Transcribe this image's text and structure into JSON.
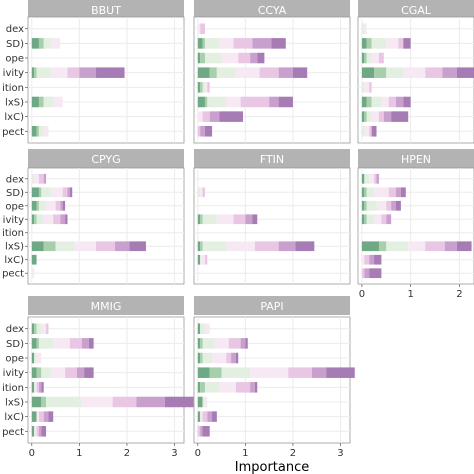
{
  "chart_data": {
    "type": "bar",
    "xlabel": "Importance",
    "ylabel": "",
    "grid": true,
    "row_tick_labels": [
      "dex",
      "SD)",
      "ope",
      "ivity",
      "ition",
      "lxS)",
      "lxC)",
      "pect"
    ],
    "panel_tick_labels": [
      "Index",
      "(SD)",
      "Slope",
      "Conductivity",
      "Precipitation",
      "(TxS)",
      "(TxC)",
      "Aspect"
    ],
    "segment_colors": [
      "#6fa884",
      "#a7cfab",
      "#e3efe1",
      "#f6e9f3",
      "#e9c7e4",
      "#c9a0cd",
      "#a77bb4"
    ],
    "panels": [
      {
        "name": "BBUT",
        "xlim": [
          -0.08,
          3.2
        ],
        "xticks": [],
        "bars": [
          [
            0,
            0,
            0,
            0,
            0,
            0,
            0
          ],
          [
            0.15,
            0.1,
            0.15,
            0.2,
            0,
            0,
            0
          ],
          [
            0,
            0,
            0,
            0,
            0,
            0,
            0
          ],
          [
            0.05,
            0.05,
            0.3,
            0.35,
            0.25,
            0.35,
            0.6
          ],
          [
            0,
            0,
            0,
            0,
            0,
            0,
            0
          ],
          [
            0.15,
            0.1,
            0.2,
            0.2,
            0,
            0,
            0
          ],
          [
            0,
            0,
            0,
            0,
            0,
            0,
            0
          ],
          [
            0.1,
            0.05,
            0.1,
            0.1,
            0,
            0,
            0
          ]
        ]
      },
      {
        "name": "CCYA",
        "xlim": [
          -0.08,
          3.2
        ],
        "xticks": [],
        "bars": [
          [
            0,
            0,
            0,
            0.05,
            0.1,
            0,
            0
          ],
          [
            0.1,
            0.05,
            0.3,
            0.3,
            0.4,
            0.4,
            0.3
          ],
          [
            0.05,
            0.1,
            0.35,
            0.35,
            0.25,
            0.15,
            0.15
          ],
          [
            0.25,
            0.15,
            0.4,
            0.5,
            0.4,
            0.3,
            0.3
          ],
          [
            0.05,
            0.05,
            0.05,
            0.05,
            0.05,
            0,
            0
          ],
          [
            0.15,
            0.05,
            0.4,
            0.3,
            0.6,
            0.2,
            0.3
          ],
          [
            0,
            0,
            0,
            0.1,
            0.15,
            0.2,
            0.5
          ],
          [
            0,
            0,
            0,
            0,
            0.05,
            0.1,
            0.15
          ]
        ]
      },
      {
        "name": "CGAL",
        "xlim": [
          -0.08,
          2.3
        ],
        "xticks": [],
        "bars": [
          [
            0,
            0,
            0.05,
            0.05,
            0,
            0,
            0
          ],
          [
            0.1,
            0.1,
            0.3,
            0.25,
            0.1,
            0,
            0.15
          ],
          [
            0.05,
            0.05,
            0.1,
            0.15,
            0.1,
            0,
            0
          ],
          [
            0.25,
            0.25,
            0.35,
            0.45,
            0.35,
            0.3,
            0.4
          ],
          [
            0,
            0,
            0.05,
            0.1,
            0.05,
            0,
            0
          ],
          [
            0.1,
            0.1,
            0.2,
            0.15,
            0.15,
            0.15,
            0.15
          ],
          [
            0.05,
            0.05,
            0.1,
            0.15,
            0.1,
            0.15,
            0.35
          ],
          [
            0,
            0,
            0.05,
            0.1,
            0.05,
            0,
            0.1
          ]
        ]
      },
      {
        "name": "CPYG",
        "xlim": [
          -0.08,
          3.2
        ],
        "xticks": [],
        "bars": [
          [
            0,
            0,
            0.05,
            0.1,
            0.1,
            0.05,
            0
          ],
          [
            0.15,
            0.05,
            0.2,
            0.25,
            0.1,
            0.05,
            0.05
          ],
          [
            0.1,
            0.05,
            0.15,
            0.2,
            0.1,
            0.05,
            0.05
          ],
          [
            0.05,
            0.05,
            0.15,
            0.2,
            0.15,
            0.1,
            0.05
          ],
          [
            0,
            0,
            0,
            0,
            0,
            0,
            0
          ],
          [
            0.25,
            0.25,
            0.4,
            0.45,
            0.4,
            0.3,
            0.35
          ],
          [
            0.1,
            0,
            0,
            0,
            0,
            0,
            0
          ],
          [
            0,
            0,
            0,
            0.05,
            0,
            0,
            0
          ]
        ]
      },
      {
        "name": "FTIN",
        "xlim": [
          -0.08,
          3.2
        ],
        "xticks": [],
        "bars": [
          [
            0,
            0,
            0,
            0,
            0,
            0,
            0
          ],
          [
            0,
            0,
            0.05,
            0.05,
            0.05,
            0,
            0
          ],
          [
            0,
            0,
            0,
            0,
            0,
            0,
            0
          ],
          [
            0.05,
            0.05,
            0.3,
            0.35,
            0.25,
            0.15,
            0.1
          ],
          [
            0,
            0,
            0,
            0,
            0,
            0,
            0
          ],
          [
            0.05,
            0.05,
            0.5,
            0.6,
            0.5,
            0.35,
            0.4
          ],
          [
            0.05,
            0,
            0,
            0.1,
            0.05,
            0,
            0
          ],
          [
            0,
            0,
            0,
            0,
            0,
            0,
            0
          ]
        ]
      },
      {
        "name": "HPEN",
        "xlim": [
          -0.08,
          2.3
        ],
        "xticks": [],
        "bars": [
          [
            0.05,
            0,
            0.1,
            0.1,
            0.05,
            0.05,
            0
          ],
          [
            0.05,
            0.05,
            0.15,
            0.3,
            0.15,
            0.1,
            0.1
          ],
          [
            0.05,
            0.05,
            0.2,
            0.2,
            0.1,
            0.1,
            0.1
          ],
          [
            0.05,
            0.05,
            0.15,
            0.15,
            0.1,
            0.1,
            0
          ],
          [
            0,
            0,
            0,
            0,
            0,
            0,
            0
          ],
          [
            0.35,
            0.15,
            0.45,
            0.35,
            0.4,
            0.25,
            0.3
          ],
          [
            0,
            0,
            0,
            0.05,
            0.1,
            0.1,
            0.15
          ],
          [
            0,
            0,
            0,
            0,
            0.05,
            0.1,
            0.25
          ]
        ]
      },
      {
        "name": "MMIG",
        "xlim": [
          -0.08,
          3.2
        ],
        "xticks": [
          "0",
          "1",
          "2",
          "3"
        ],
        "bars": [
          [
            0.05,
            0.05,
            0.1,
            0.1,
            0.05,
            0,
            0
          ],
          [
            0.1,
            0.05,
            0.3,
            0.35,
            0.25,
            0.15,
            0.1
          ],
          [
            0.05,
            0,
            0.05,
            0.1,
            0,
            0,
            0
          ],
          [
            0.1,
            0.1,
            0.2,
            0.3,
            0.25,
            0.15,
            0.2
          ],
          [
            0.05,
            0,
            0,
            0.05,
            0.05,
            0.05,
            0.05
          ],
          [
            0.2,
            0.1,
            0.75,
            0.65,
            0.5,
            0.6,
            0.6
          ],
          [
            0.1,
            0,
            0,
            0.05,
            0.1,
            0.1,
            0.1
          ],
          [
            0.05,
            0,
            0,
            0.05,
            0.05,
            0.05,
            0.1
          ]
        ]
      },
      {
        "name": "PAPI",
        "xlim": [
          -0.08,
          3.2
        ],
        "xticks": [
          "0",
          "1",
          "2",
          "3"
        ],
        "bars": [
          [
            0.05,
            0,
            0.1,
            0.1,
            0,
            0,
            0
          ],
          [
            0.05,
            0.05,
            0.25,
            0.3,
            0.25,
            0.1,
            0.05
          ],
          [
            0.05,
            0.05,
            0.2,
            0.3,
            0.1,
            0.1,
            0.05
          ],
          [
            0.25,
            0.25,
            0.6,
            0.8,
            0.5,
            0.3,
            0.6
          ],
          [
            0.05,
            0.1,
            0.3,
            0.35,
            0.3,
            0.1,
            0.05
          ],
          [
            0.1,
            0,
            0.05,
            0.05,
            0,
            0,
            0
          ],
          [
            0.05,
            0,
            0,
            0.05,
            0.1,
            0.1,
            0.1
          ],
          [
            0,
            0,
            0,
            0,
            0.05,
            0.05,
            0.15
          ]
        ]
      }
    ],
    "hpen_xticks": [
      "0",
      "1",
      "2"
    ]
  }
}
